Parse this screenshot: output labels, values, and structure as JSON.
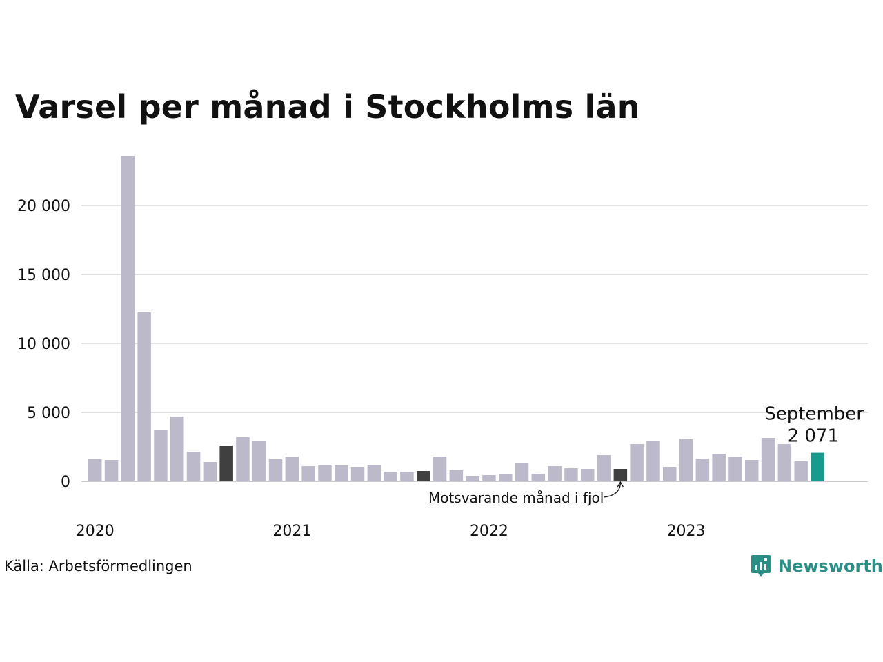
{
  "chart_data": {
    "type": "bar",
    "title": "Varsel per månad i Stockholms län",
    "xlabel": "",
    "ylabel": "",
    "ylim": [
      0,
      25000
    ],
    "yticks": [
      0,
      5000,
      10000,
      15000,
      20000
    ],
    "ytick_labels": [
      "0",
      "5 000",
      "10 000",
      "15 000",
      "20 000"
    ],
    "year_labels": [
      {
        "label": "2020",
        "month_index": 0
      },
      {
        "label": "2021",
        "month_index": 12
      },
      {
        "label": "2022",
        "month_index": 24
      },
      {
        "label": "2023",
        "month_index": 36
      }
    ],
    "grid": true,
    "colors": {
      "default": "#bcb9ca",
      "comparison": "#404040",
      "current": "#1a9a8c",
      "grid": "#e2e2e2"
    },
    "categories": [
      "2020-01",
      "2020-02",
      "2020-03",
      "2020-04",
      "2020-05",
      "2020-06",
      "2020-07",
      "2020-08",
      "2020-09",
      "2020-10",
      "2020-11",
      "2020-12",
      "2021-01",
      "2021-02",
      "2021-03",
      "2021-04",
      "2021-05",
      "2021-06",
      "2021-07",
      "2021-08",
      "2021-09",
      "2021-10",
      "2021-11",
      "2021-12",
      "2022-01",
      "2022-02",
      "2022-03",
      "2022-04",
      "2022-05",
      "2022-06",
      "2022-07",
      "2022-08",
      "2022-09",
      "2022-10",
      "2022-11",
      "2022-12",
      "2023-01",
      "2023-02",
      "2023-03",
      "2023-04",
      "2023-05",
      "2023-06",
      "2023-07",
      "2023-08",
      "2023-09"
    ],
    "values": [
      1600,
      1550,
      23600,
      12250,
      3700,
      4700,
      2150,
      1400,
      2550,
      3200,
      2900,
      1600,
      1800,
      1100,
      1200,
      1150,
      1050,
      1200,
      700,
      700,
      750,
      1800,
      800,
      400,
      450,
      500,
      1300,
      550,
      1100,
      950,
      900,
      1900,
      900,
      2700,
      2900,
      1050,
      3050,
      1650,
      2000,
      1800,
      1550,
      3150,
      2700,
      1450,
      2071
    ],
    "highlight": {
      "comparison_indices": [
        8,
        20,
        32
      ],
      "current_index": 44
    },
    "annotations": {
      "current_label": "September",
      "current_value_label": "2 071",
      "comparison_label": "Motsvarande månad i fjol"
    }
  },
  "footer": {
    "source": "Källa: Arbetsförmedlingen",
    "brand": "Newsworthy",
    "brand_icon": "newsworthy-logo-icon",
    "brand_color": "#2a8f85"
  }
}
